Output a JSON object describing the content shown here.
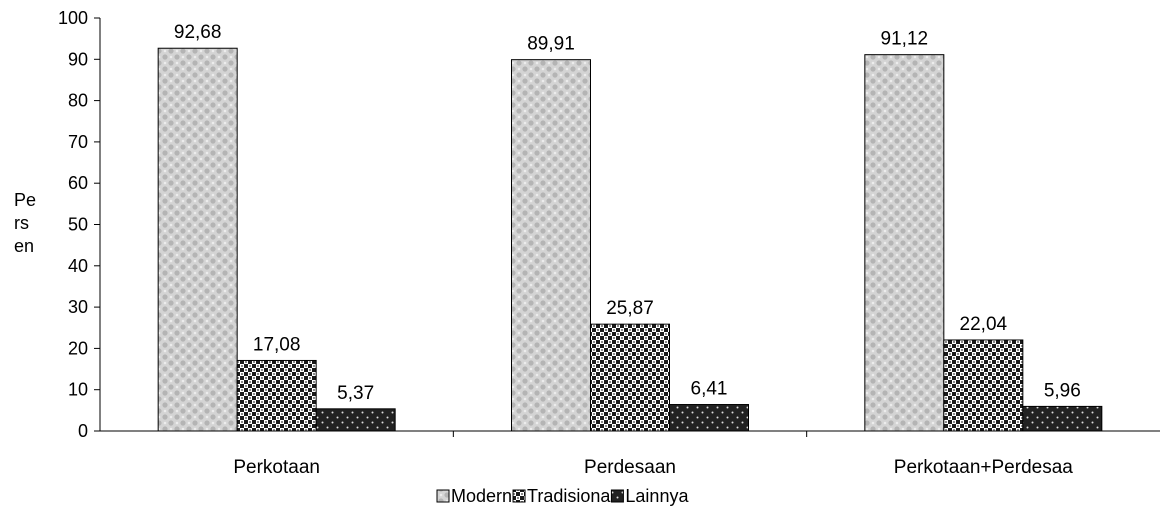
{
  "chart_data": {
    "type": "bar",
    "title": "",
    "xlabel": "",
    "ylabel_lines": [
      "Pe",
      "rs",
      "en"
    ],
    "ylim": [
      0,
      100
    ],
    "yticks": [
      0,
      10,
      20,
      30,
      40,
      50,
      60,
      70,
      80,
      90,
      100
    ],
    "categories": [
      "Perkotaan",
      "Perdesaan",
      "Perkotaan+Perdesaa"
    ],
    "series": [
      {
        "name": "Modern",
        "values": [
          92.68,
          89.91,
          91.12
        ],
        "labels": [
          "92,68",
          "89,91",
          "91,12"
        ],
        "pattern": "light-checker"
      },
      {
        "name": "Tradisional",
        "values": [
          17.08,
          25.87,
          22.04
        ],
        "labels": [
          "17,08",
          "25,87",
          "22,04"
        ],
        "pattern": "dark-checker"
      },
      {
        "name": "Lainnya",
        "values": [
          5.37,
          6.41,
          5.96
        ],
        "labels": [
          "5,37",
          "6,41",
          "5,96"
        ],
        "pattern": "dark-dots"
      }
    ],
    "legend": {
      "placement": "bottom",
      "labels": [
        "Modern",
        "Tradisiona",
        "Lainnya"
      ]
    },
    "grid": false,
    "colors": {
      "light": "#c8c8c8",
      "mid": "#666666",
      "dark": "#222222"
    }
  }
}
